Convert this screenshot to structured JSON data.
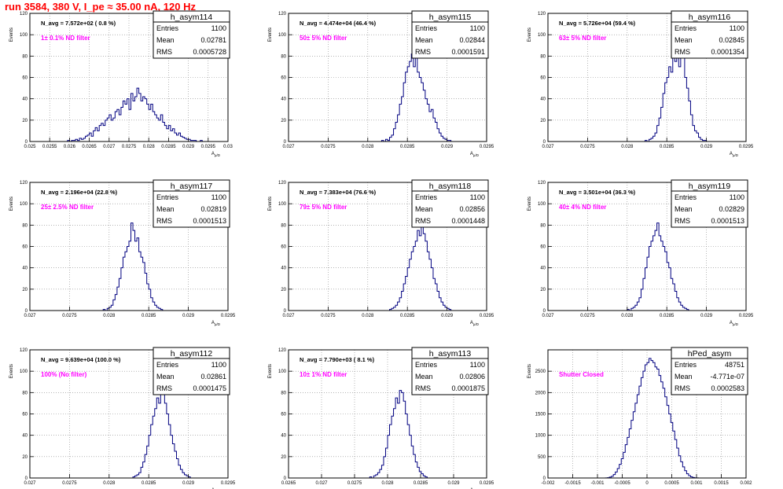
{
  "canvas_title": "run 3584,   380 V, I_pe ≈ 35.00 nA, 120 Hz",
  "colors": {
    "title": "#ff0000",
    "histogram_line": "#000080",
    "annotation": "#ff00ff",
    "grid": "#888888",
    "frame": "#000000"
  },
  "chart_data": [
    {
      "type": "histogram",
      "name": "h_asym114",
      "stats": {
        "entries": "1100",
        "mean": "0.02781",
        "rms": "0.0005728"
      },
      "n_avg_label": "N_avg = 7.572e+02 ( 0.8 %)",
      "annotation": "1± 0.1% ND filter",
      "ylabel": "Events",
      "xlabel": "A_{μ/D}",
      "ylim": [
        0,
        120
      ],
      "yticks": [
        "0",
        "20",
        "40",
        "60",
        "80",
        "100",
        "120"
      ],
      "xlim": [
        0.025,
        0.03
      ],
      "xtick_values": [
        0.025,
        0.0255,
        0.026,
        0.0265,
        0.027,
        0.0275,
        0.028,
        0.0285,
        0.029,
        0.0295,
        0.03
      ],
      "xtick_labels": [
        "0.025",
        "0.0255",
        "0.026",
        "0.0265",
        "0.027",
        "0.0275",
        "0.028",
        "0.0285",
        "0.029",
        "0.0295",
        "0.03"
      ],
      "grid": true,
      "values": [
        0,
        0,
        0,
        0,
        0,
        0,
        0,
        0,
        0,
        0,
        0,
        0,
        0,
        0,
        0,
        0,
        0,
        0,
        0,
        1,
        0,
        1,
        1,
        2,
        1,
        3,
        2,
        3,
        5,
        6,
        8,
        5,
        10,
        13,
        10,
        15,
        17,
        15,
        20,
        22,
        25,
        20,
        22,
        28,
        30,
        25,
        32,
        38,
        35,
        40,
        30,
        45,
        38,
        42,
        50,
        45,
        38,
        42,
        40,
        35,
        30,
        35,
        28,
        25,
        22,
        20,
        25,
        18,
        15,
        12,
        15,
        10,
        12,
        8,
        6,
        8,
        5,
        4,
        3,
        2,
        2,
        1,
        1,
        1,
        0,
        0,
        1,
        0,
        0,
        0,
        0,
        0,
        0,
        0,
        0,
        0,
        0,
        0,
        0,
        0
      ]
    },
    {
      "type": "histogram",
      "name": "h_asym115",
      "stats": {
        "entries": "1100",
        "mean": "0.02844",
        "rms": "0.0001591"
      },
      "n_avg_label": "N_avg = 4.474e+04 (46.4 %)",
      "annotation": "50± 5% ND filter",
      "ylabel": "Events",
      "xlabel": "A_{μ/D}",
      "ylim": [
        0,
        120
      ],
      "yticks": [
        "0",
        "20",
        "40",
        "60",
        "80",
        "100",
        "120"
      ],
      "xlim": [
        0.027,
        0.0295
      ],
      "xtick_values": [
        0.027,
        0.0275,
        0.028,
        0.0285,
        0.029,
        0.0295
      ],
      "xtick_labels": [
        "0.027",
        "0.0275",
        "0.028",
        "0.0285",
        "0.029",
        "0.0295"
      ],
      "grid": true,
      "values": [
        0,
        0,
        0,
        0,
        0,
        0,
        0,
        0,
        0,
        0,
        0,
        0,
        0,
        0,
        0,
        0,
        0,
        0,
        0,
        0,
        0,
        0,
        0,
        0,
        0,
        0,
        0,
        0,
        0,
        0,
        0,
        0,
        0,
        0,
        0,
        0,
        0,
        0,
        0,
        0,
        0,
        0,
        0,
        0,
        0,
        0,
        0,
        1,
        0,
        2,
        1,
        4,
        6,
        12,
        18,
        25,
        35,
        42,
        55,
        65,
        70,
        75,
        82,
        70,
        78,
        65,
        60,
        55,
        48,
        40,
        35,
        28,
        30,
        22,
        18,
        12,
        8,
        5,
        3,
        2,
        1,
        1,
        0,
        0,
        0,
        0,
        0,
        0,
        0,
        0,
        0,
        0,
        0,
        0,
        0,
        0,
        0,
        0,
        0,
        0
      ]
    },
    {
      "type": "histogram",
      "name": "h_asym116",
      "stats": {
        "entries": "1100",
        "mean": "0.02845",
        "rms": "0.0001354"
      },
      "n_avg_label": "N_avg = 5.726e+04 (59.4 %)",
      "annotation": "63± 5% ND filter",
      "ylabel": "Events",
      "xlabel": "A_{μ/D}",
      "ylim": [
        0,
        120
      ],
      "yticks": [
        "0",
        "20",
        "40",
        "60",
        "80",
        "100",
        "120"
      ],
      "xlim": [
        0.027,
        0.0295
      ],
      "xtick_values": [
        0.027,
        0.0275,
        0.028,
        0.0285,
        0.029,
        0.0295
      ],
      "xtick_labels": [
        "0.027",
        "0.0275",
        "0.028",
        "0.0285",
        "0.029",
        "0.0295"
      ],
      "grid": true,
      "values": [
        0,
        0,
        0,
        0,
        0,
        0,
        0,
        0,
        0,
        0,
        0,
        0,
        0,
        0,
        0,
        0,
        0,
        0,
        0,
        0,
        0,
        0,
        0,
        0,
        0,
        0,
        0,
        0,
        0,
        0,
        0,
        0,
        0,
        0,
        0,
        0,
        0,
        0,
        0,
        0,
        0,
        0,
        0,
        0,
        0,
        0,
        0,
        0,
        0,
        1,
        0,
        2,
        3,
        5,
        8,
        15,
        22,
        32,
        45,
        55,
        60,
        70,
        65,
        80,
        75,
        92,
        70,
        105,
        85,
        60,
        50,
        38,
        25,
        15,
        10,
        8,
        4,
        2,
        1,
        1,
        0,
        0,
        0,
        0,
        0,
        0,
        0,
        0,
        0,
        0,
        0,
        0,
        0,
        0,
        0,
        0,
        0,
        0,
        0,
        0
      ]
    },
    {
      "type": "histogram",
      "name": "h_asym117",
      "stats": {
        "entries": "1100",
        "mean": "0.02819",
        "rms": "0.0001513"
      },
      "n_avg_label": "N_avg = 2.196e+04 (22.8 %)",
      "annotation": "25± 2.5% ND filter",
      "ylabel": "Events",
      "xlabel": "A_{μ/D}",
      "ylim": [
        0,
        120
      ],
      "yticks": [
        "0",
        "20",
        "40",
        "60",
        "80",
        "100",
        "120"
      ],
      "xlim": [
        0.027,
        0.0295
      ],
      "xtick_values": [
        0.027,
        0.0275,
        0.028,
        0.0285,
        0.029,
        0.0295
      ],
      "xtick_labels": [
        "0.027",
        "0.0275",
        "0.028",
        "0.0285",
        "0.029",
        "0.0295"
      ],
      "grid": true,
      "values": [
        0,
        0,
        0,
        0,
        0,
        0,
        0,
        0,
        0,
        0,
        0,
        0,
        0,
        0,
        0,
        0,
        0,
        0,
        0,
        0,
        0,
        0,
        0,
        0,
        0,
        0,
        0,
        0,
        0,
        0,
        0,
        0,
        0,
        0,
        0,
        0,
        0,
        1,
        0,
        2,
        3,
        5,
        10,
        15,
        22,
        30,
        40,
        50,
        55,
        60,
        65,
        82,
        75,
        65,
        68,
        55,
        50,
        45,
        35,
        25,
        20,
        12,
        8,
        5,
        3,
        2,
        1,
        0,
        0,
        0,
        0,
        0,
        0,
        0,
        0,
        0,
        0,
        0,
        0,
        0,
        0,
        0,
        0,
        0,
        0,
        0,
        0,
        0,
        0,
        0,
        0,
        0,
        0,
        0,
        0,
        0,
        0,
        0,
        0,
        0
      ]
    },
    {
      "type": "histogram",
      "name": "h_asym118",
      "stats": {
        "entries": "1100",
        "mean": "0.02856",
        "rms": "0.0001448"
      },
      "n_avg_label": "N_avg = 7.383e+04 (76.6 %)",
      "annotation": "79± 5% ND filter",
      "ylabel": "Events",
      "xlabel": "A_{μ/D}",
      "ylim": [
        0,
        120
      ],
      "yticks": [
        "0",
        "20",
        "40",
        "60",
        "80",
        "100",
        "120"
      ],
      "xlim": [
        0.027,
        0.0295
      ],
      "xtick_values": [
        0.027,
        0.0275,
        0.028,
        0.0285,
        0.029,
        0.0295
      ],
      "xtick_labels": [
        "0.027",
        "0.0275",
        "0.028",
        "0.0285",
        "0.029",
        "0.0295"
      ],
      "grid": true,
      "values": [
        0,
        0,
        0,
        0,
        0,
        0,
        0,
        0,
        0,
        0,
        0,
        0,
        0,
        0,
        0,
        0,
        0,
        0,
        0,
        0,
        0,
        0,
        0,
        0,
        0,
        0,
        0,
        0,
        0,
        0,
        0,
        0,
        0,
        0,
        0,
        0,
        0,
        0,
        0,
        0,
        0,
        0,
        0,
        0,
        0,
        0,
        0,
        0,
        0,
        0,
        0,
        1,
        2,
        3,
        5,
        8,
        12,
        18,
        25,
        32,
        40,
        48,
        55,
        60,
        65,
        75,
        70,
        78,
        72,
        65,
        55,
        48,
        40,
        30,
        25,
        18,
        12,
        8,
        5,
        3,
        2,
        1,
        0,
        0,
        0,
        0,
        0,
        0,
        0,
        0,
        0,
        0,
        0,
        0,
        0,
        0,
        0,
        0,
        0,
        0
      ]
    },
    {
      "type": "histogram",
      "name": "h_asym119",
      "stats": {
        "entries": "1100",
        "mean": "0.02829",
        "rms": "0.0001513"
      },
      "n_avg_label": "N_avg = 3.501e+04 (36.3 %)",
      "annotation": "40± 4% ND filter",
      "ylabel": "Events",
      "xlabel": "A_{μ/D}",
      "ylim": [
        0,
        120
      ],
      "yticks": [
        "0",
        "20",
        "40",
        "60",
        "80",
        "100",
        "120"
      ],
      "xlim": [
        0.027,
        0.0295
      ],
      "xtick_values": [
        0.027,
        0.0275,
        0.028,
        0.0285,
        0.029,
        0.0295
      ],
      "xtick_labels": [
        "0.027",
        "0.0275",
        "0.028",
        "0.0285",
        "0.029",
        "0.0295"
      ],
      "grid": true,
      "values": [
        0,
        0,
        0,
        0,
        0,
        0,
        0,
        0,
        0,
        0,
        0,
        0,
        0,
        0,
        0,
        0,
        0,
        0,
        0,
        0,
        0,
        0,
        0,
        0,
        0,
        0,
        0,
        0,
        0,
        0,
        0,
        0,
        0,
        0,
        0,
        0,
        0,
        0,
        0,
        0,
        1,
        0,
        2,
        3,
        5,
        8,
        12,
        20,
        30,
        40,
        50,
        60,
        65,
        70,
        75,
        82,
        70,
        65,
        60,
        55,
        45,
        40,
        30,
        25,
        18,
        12,
        8,
        5,
        3,
        2,
        1,
        0,
        0,
        0,
        0,
        0,
        0,
        0,
        0,
        0,
        0,
        0,
        0,
        0,
        0,
        0,
        0,
        0,
        0,
        0,
        0,
        0,
        0,
        0,
        0,
        0,
        0,
        0,
        0,
        0
      ]
    },
    {
      "type": "histogram",
      "name": "h_asym112",
      "stats": {
        "entries": "1100",
        "mean": "0.02861",
        "rms": "0.0001475"
      },
      "n_avg_label": "N_avg = 9.639e+04 (100.0 %)",
      "annotation": "100% (No filter)",
      "ylabel": "Events",
      "xlabel": "A_{μ/D}",
      "ylim": [
        0,
        120
      ],
      "yticks": [
        "0",
        "20",
        "40",
        "60",
        "80",
        "100",
        "120"
      ],
      "xlim": [
        0.027,
        0.0295
      ],
      "xtick_values": [
        0.027,
        0.0275,
        0.028,
        0.0285,
        0.029,
        0.0295
      ],
      "xtick_labels": [
        "0.027",
        "0.0275",
        "0.028",
        "0.0285",
        "0.029",
        "0.0295"
      ],
      "grid": true,
      "values": [
        0,
        0,
        0,
        0,
        0,
        0,
        0,
        0,
        0,
        0,
        0,
        0,
        0,
        0,
        0,
        0,
        0,
        0,
        0,
        0,
        0,
        0,
        0,
        0,
        0,
        0,
        0,
        0,
        0,
        0,
        0,
        0,
        0,
        0,
        0,
        0,
        0,
        0,
        0,
        0,
        0,
        0,
        0,
        0,
        0,
        0,
        0,
        0,
        0,
        0,
        0,
        0,
        1,
        2,
        3,
        5,
        10,
        15,
        22,
        30,
        40,
        50,
        58,
        65,
        75,
        70,
        82,
        78,
        70,
        60,
        50,
        40,
        32,
        25,
        18,
        12,
        8,
        5,
        3,
        2,
        1,
        0,
        0,
        0,
        0,
        0,
        0,
        0,
        0,
        0,
        0,
        0,
        0,
        0,
        0,
        0,
        0,
        0,
        0,
        0
      ]
    },
    {
      "type": "histogram",
      "name": "h_asym113",
      "stats": {
        "entries": "1100",
        "mean": "0.02806",
        "rms": "0.0001875"
      },
      "n_avg_label": "N_avg = 7.790e+03 ( 8.1 %)",
      "annotation": "10± 1% ND filter",
      "ylabel": "Events",
      "xlabel": "A_{μ/D}",
      "ylim": [
        0,
        120
      ],
      "yticks": [
        "0",
        "20",
        "40",
        "60",
        "80",
        "100",
        "120"
      ],
      "xlim": [
        0.0265,
        0.0295
      ],
      "xtick_values": [
        0.0265,
        0.027,
        0.0275,
        0.028,
        0.0285,
        0.029,
        0.0295
      ],
      "xtick_labels": [
        "0.0265",
        "0.027",
        "0.0275",
        "0.028",
        "0.0285",
        "0.029",
        "0.0295"
      ],
      "grid": true,
      "values": [
        0,
        0,
        0,
        0,
        0,
        0,
        0,
        0,
        0,
        0,
        0,
        0,
        0,
        0,
        0,
        0,
        0,
        0,
        0,
        0,
        0,
        0,
        0,
        0,
        0,
        0,
        0,
        0,
        0,
        0,
        0,
        0,
        0,
        0,
        0,
        0,
        0,
        0,
        0,
        0,
        0,
        1,
        0,
        2,
        3,
        5,
        8,
        12,
        20,
        28,
        40,
        50,
        58,
        65,
        75,
        70,
        82,
        80,
        72,
        60,
        50,
        40,
        30,
        22,
        15,
        10,
        6,
        4,
        2,
        1,
        0,
        0,
        0,
        0,
        0,
        0,
        0,
        0,
        0,
        0,
        0,
        0,
        0,
        0,
        0,
        0,
        0,
        0,
        0,
        0,
        0,
        0,
        0,
        0,
        0,
        0,
        0,
        0,
        0,
        0
      ]
    },
    {
      "type": "histogram",
      "name": "hPed_asym",
      "stats": {
        "entries": "48751",
        "mean": "-4.771e-07",
        "rms": "0.0002583"
      },
      "n_avg_label": "",
      "annotation": "Shutter Closed",
      "ylabel": "Events",
      "xlabel": "",
      "ylim": [
        0,
        3000
      ],
      "yticks": [
        "0",
        "500",
        "1000",
        "1500",
        "2000",
        "2500"
      ],
      "xlim": [
        -0.002,
        0.002
      ],
      "xtick_values": [
        -0.002,
        -0.0015,
        -0.001,
        -0.0005,
        0,
        0.0005,
        0.001,
        0.0015,
        0.002
      ],
      "xtick_labels": [
        "-0.002",
        "-0.0015",
        "-0.001",
        "-0.0005",
        "0",
        "0.0005",
        "0.001",
        "0.0015",
        "0.002"
      ],
      "grid": true,
      "values": [
        0,
        0,
        0,
        0,
        0,
        0,
        0,
        0,
        0,
        0,
        0,
        0,
        0,
        0,
        0,
        0,
        0,
        0,
        0,
        0,
        0,
        0,
        0,
        0,
        0,
        0,
        0,
        0,
        1,
        3,
        8,
        20,
        40,
        80,
        140,
        220,
        320,
        450,
        600,
        780,
        950,
        1150,
        1350,
        1550,
        1750,
        1950,
        2150,
        2350,
        2500,
        2650,
        2700,
        2800,
        2750,
        2700,
        2600,
        2550,
        2400,
        2250,
        2100,
        1900,
        1700,
        1500,
        1300,
        1100,
        900,
        700,
        520,
        380,
        260,
        170,
        100,
        55,
        28,
        12,
        5,
        2,
        1,
        0,
        0,
        0,
        0,
        0,
        0,
        0,
        0,
        0,
        0,
        0,
        0,
        0,
        0,
        0,
        0,
        0,
        0,
        0,
        0,
        0,
        0,
        0
      ]
    }
  ]
}
